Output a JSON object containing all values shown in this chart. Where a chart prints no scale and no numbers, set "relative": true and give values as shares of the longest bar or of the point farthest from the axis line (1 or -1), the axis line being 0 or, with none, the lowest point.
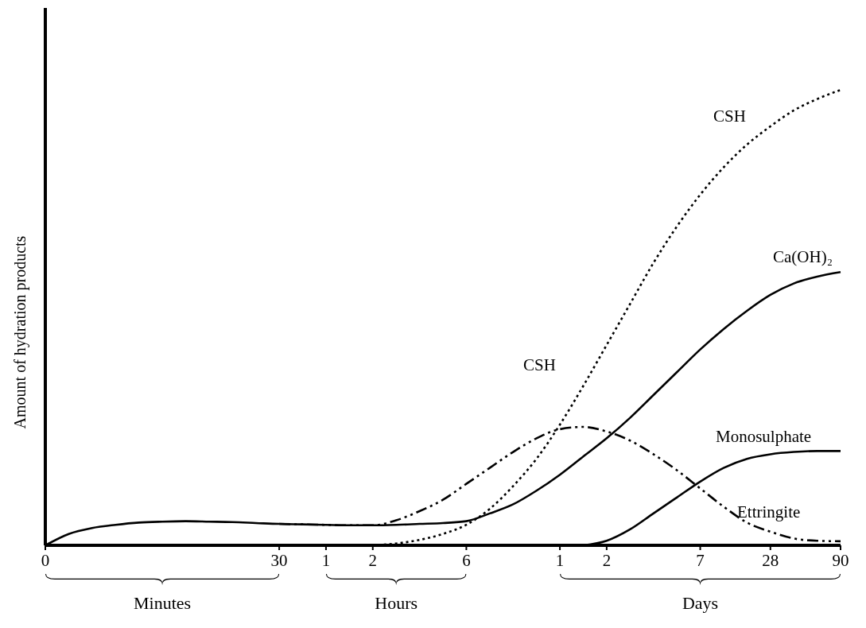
{
  "chart_data": {
    "type": "line",
    "relative": true,
    "ylabel": "Amount of hydration products",
    "categories": [
      "0",
      null,
      null,
      null,
      null,
      null,
      null,
      null,
      null,
      null,
      "30",
      null,
      "1",
      null,
      "2",
      null,
      null,
      null,
      "6",
      null,
      null,
      null,
      "1",
      null,
      "2",
      null,
      null,
      null,
      "7",
      null,
      null,
      "28",
      null,
      null,
      "90"
    ],
    "tick_labels": "x",
    "marker": "none",
    "series": [
      {
        "name": "CSH",
        "color": "#000000",
        "line_style": "dotted",
        "values": [
          null,
          null,
          null,
          null,
          null,
          null,
          null,
          null,
          null,
          null,
          null,
          null,
          null,
          null,
          0,
          0.004,
          0.012,
          0.025,
          0.045,
          0.08,
          0.13,
          0.19,
          0.265,
          0.35,
          0.44,
          0.53,
          0.62,
          0.7,
          0.77,
          0.83,
          0.88,
          0.92,
          0.955,
          0.98,
          1
        ]
      },
      {
        "name": "Ca(OH)₂",
        "color": "#000000",
        "line_style": "solid",
        "values": [
          0,
          0.025,
          0.038,
          0.045,
          0.05,
          0.052,
          0.053,
          0.052,
          0.051,
          0.049,
          0.047,
          0.046,
          0.045,
          0.044,
          0.044,
          0.045,
          0.047,
          0.049,
          0.053,
          0.07,
          0.09,
          0.12,
          0.155,
          0.195,
          0.235,
          0.28,
          0.33,
          0.38,
          0.43,
          0.475,
          0.515,
          0.55,
          0.575,
          0.59,
          0.6
        ]
      },
      {
        "name": "Monosulphate",
        "color": "#000000",
        "line_style": "solid",
        "values": [
          null,
          null,
          null,
          null,
          null,
          null,
          null,
          null,
          null,
          null,
          null,
          null,
          null,
          null,
          null,
          null,
          null,
          null,
          null,
          null,
          null,
          null,
          null,
          0,
          0.01,
          0.035,
          0.07,
          0.105,
          0.14,
          0.17,
          0.19,
          0.2,
          0.205,
          0.207,
          0.207
        ]
      },
      {
        "name": "Ettringite",
        "color": "#000000",
        "line_style": "dashdot",
        "values": [
          null,
          null,
          null,
          null,
          null,
          null,
          null,
          null,
          null,
          null,
          0.047,
          0.046,
          0.045,
          0.044,
          0.044,
          0.055,
          0.075,
          0.1,
          0.135,
          0.17,
          0.205,
          0.235,
          0.255,
          0.26,
          0.25,
          0.23,
          0.2,
          0.165,
          0.125,
          0.085,
          0.05,
          0.03,
          0.015,
          0.01,
          0.009
        ]
      }
    ],
    "annotations": [
      "Minutes",
      "Hours",
      "Days",
      "CSH"
    ]
  }
}
